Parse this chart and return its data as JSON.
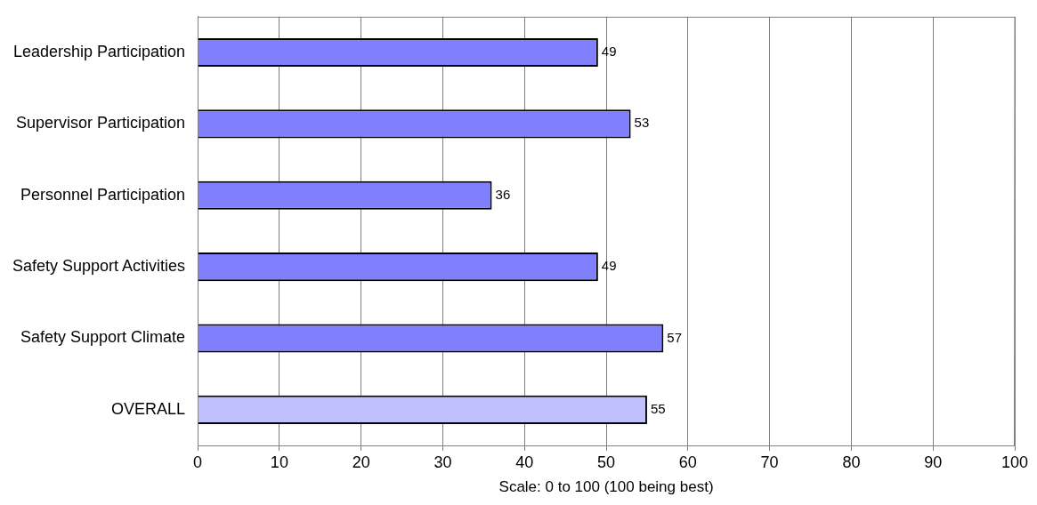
{
  "chart_data": {
    "type": "bar",
    "orientation": "horizontal",
    "xlabel": "Scale: 0 to 100 (100 being best)",
    "categories": [
      "Leadership Participation",
      "Supervisor Participation",
      "Personnel Participation",
      "Safety Support Activities",
      "Safety Support Climate",
      "OVERALL"
    ],
    "values": [
      49,
      53,
      36,
      49,
      57,
      55
    ],
    "colors": [
      "#8080ff",
      "#8080ff",
      "#8080ff",
      "#8080ff",
      "#8080ff",
      "#c0c0ff"
    ],
    "xlim": [
      0,
      100
    ],
    "xticks": [
      0,
      10,
      20,
      30,
      40,
      50,
      60,
      70,
      80,
      90,
      100
    ],
    "grid": "x",
    "legend": false,
    "data_labels": true
  }
}
